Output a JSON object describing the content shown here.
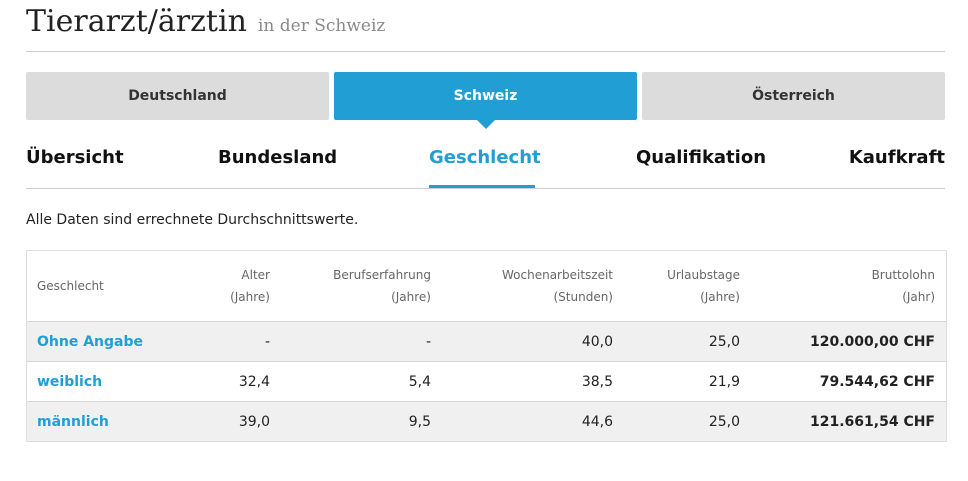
{
  "header": {
    "title": "Tierarzt/ärztin",
    "subtitle": "in der Schweiz"
  },
  "country_tabs": [
    {
      "label": "Deutschland",
      "active": false
    },
    {
      "label": "Schweiz",
      "active": true
    },
    {
      "label": "Österreich",
      "active": false
    }
  ],
  "sub_tabs": [
    {
      "label": "Übersicht",
      "active": false
    },
    {
      "label": "Bundesland",
      "active": false
    },
    {
      "label": "Geschlecht",
      "active": true
    },
    {
      "label": "Qualifikation",
      "active": false
    },
    {
      "label": "Kaufkraft",
      "active": false
    }
  ],
  "note": "Alle Daten sind errechnete Durchschnittswerte.",
  "table": {
    "headers": [
      {
        "line1": "Geschlecht",
        "line2": ""
      },
      {
        "line1": "Alter",
        "line2": "(Jahre)"
      },
      {
        "line1": "Berufserfahrung",
        "line2": "(Jahre)"
      },
      {
        "line1": "Wochenarbeitszeit",
        "line2": "(Stunden)"
      },
      {
        "line1": "Urlaubstage",
        "line2": "(Jahre)"
      },
      {
        "line1": "Bruttolohn",
        "line2": "(Jahr)"
      }
    ],
    "rows": [
      {
        "gender": "Ohne Angabe",
        "age": "-",
        "experience": "-",
        "hours": "40,0",
        "vacation": "25,0",
        "salary": "120.000,00 CHF"
      },
      {
        "gender": "weiblich",
        "age": "32,4",
        "experience": "5,4",
        "hours": "38,5",
        "vacation": "21,9",
        "salary": "79.544,62 CHF"
      },
      {
        "gender": "männlich",
        "age": "39,0",
        "experience": "9,5",
        "hours": "44,6",
        "vacation": "25,0",
        "salary": "121.661,54 CHF"
      }
    ]
  },
  "colors": {
    "accent": "#219fd5",
    "tab_inactive": "#dcdcdc",
    "row_shade": "#f0f0f0"
  }
}
